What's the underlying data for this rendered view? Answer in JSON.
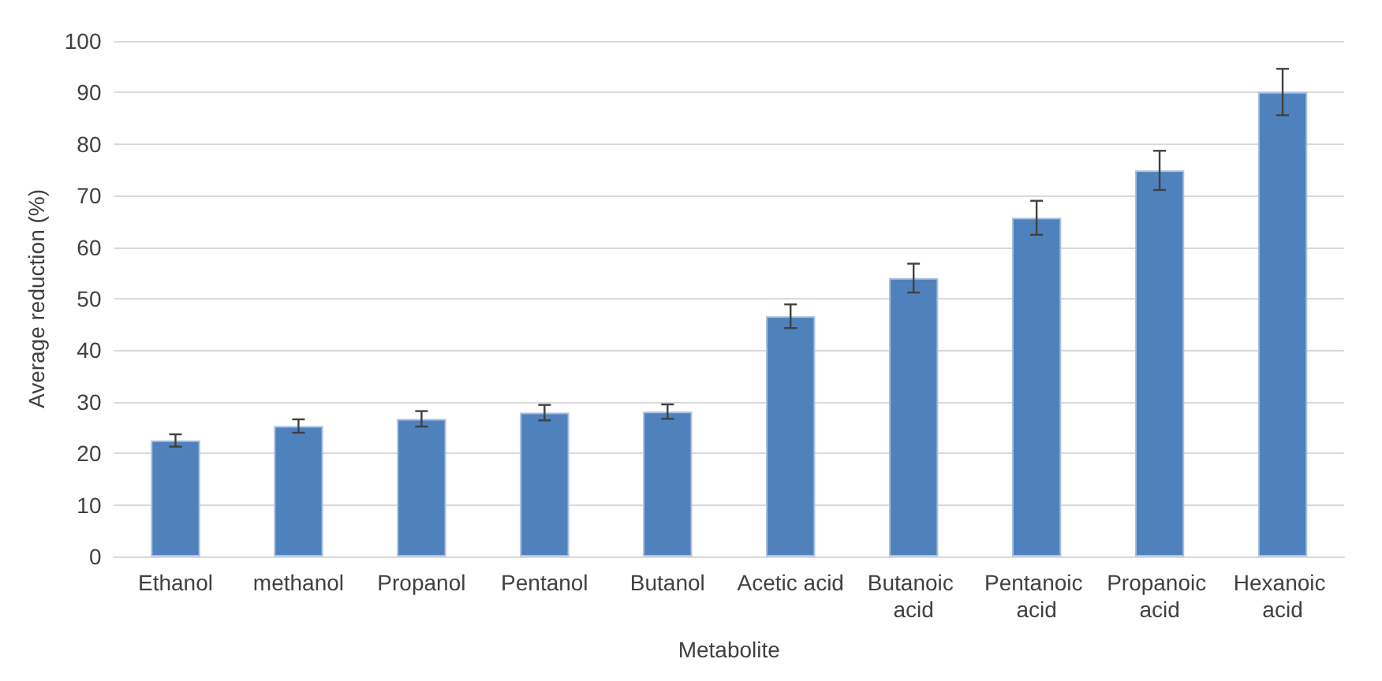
{
  "chart_data": {
    "type": "bar",
    "xlabel": "Metabolite",
    "ylabel": "Average reduction (%)",
    "categories": [
      "Ethanol",
      "methanol",
      "Propanol",
      "Pentanol",
      "Butanol",
      "Acetic acid",
      "Butanoic acid",
      "Pentanoic acid",
      "Propanoic acid",
      "Hexanoic acid"
    ],
    "values": [
      22.5,
      25.3,
      26.7,
      27.9,
      28.1,
      46.6,
      54.0,
      65.7,
      74.9,
      90.1
    ],
    "errors": [
      1.2,
      1.3,
      1.5,
      1.5,
      1.4,
      2.3,
      2.8,
      3.3,
      3.8,
      4.5
    ],
    "color": "#4f81bd",
    "ylim": [
      0,
      100
    ],
    "yticks": [
      0,
      10,
      20,
      30,
      40,
      50,
      60,
      70,
      80,
      90,
      100
    ],
    "grid": "y"
  }
}
